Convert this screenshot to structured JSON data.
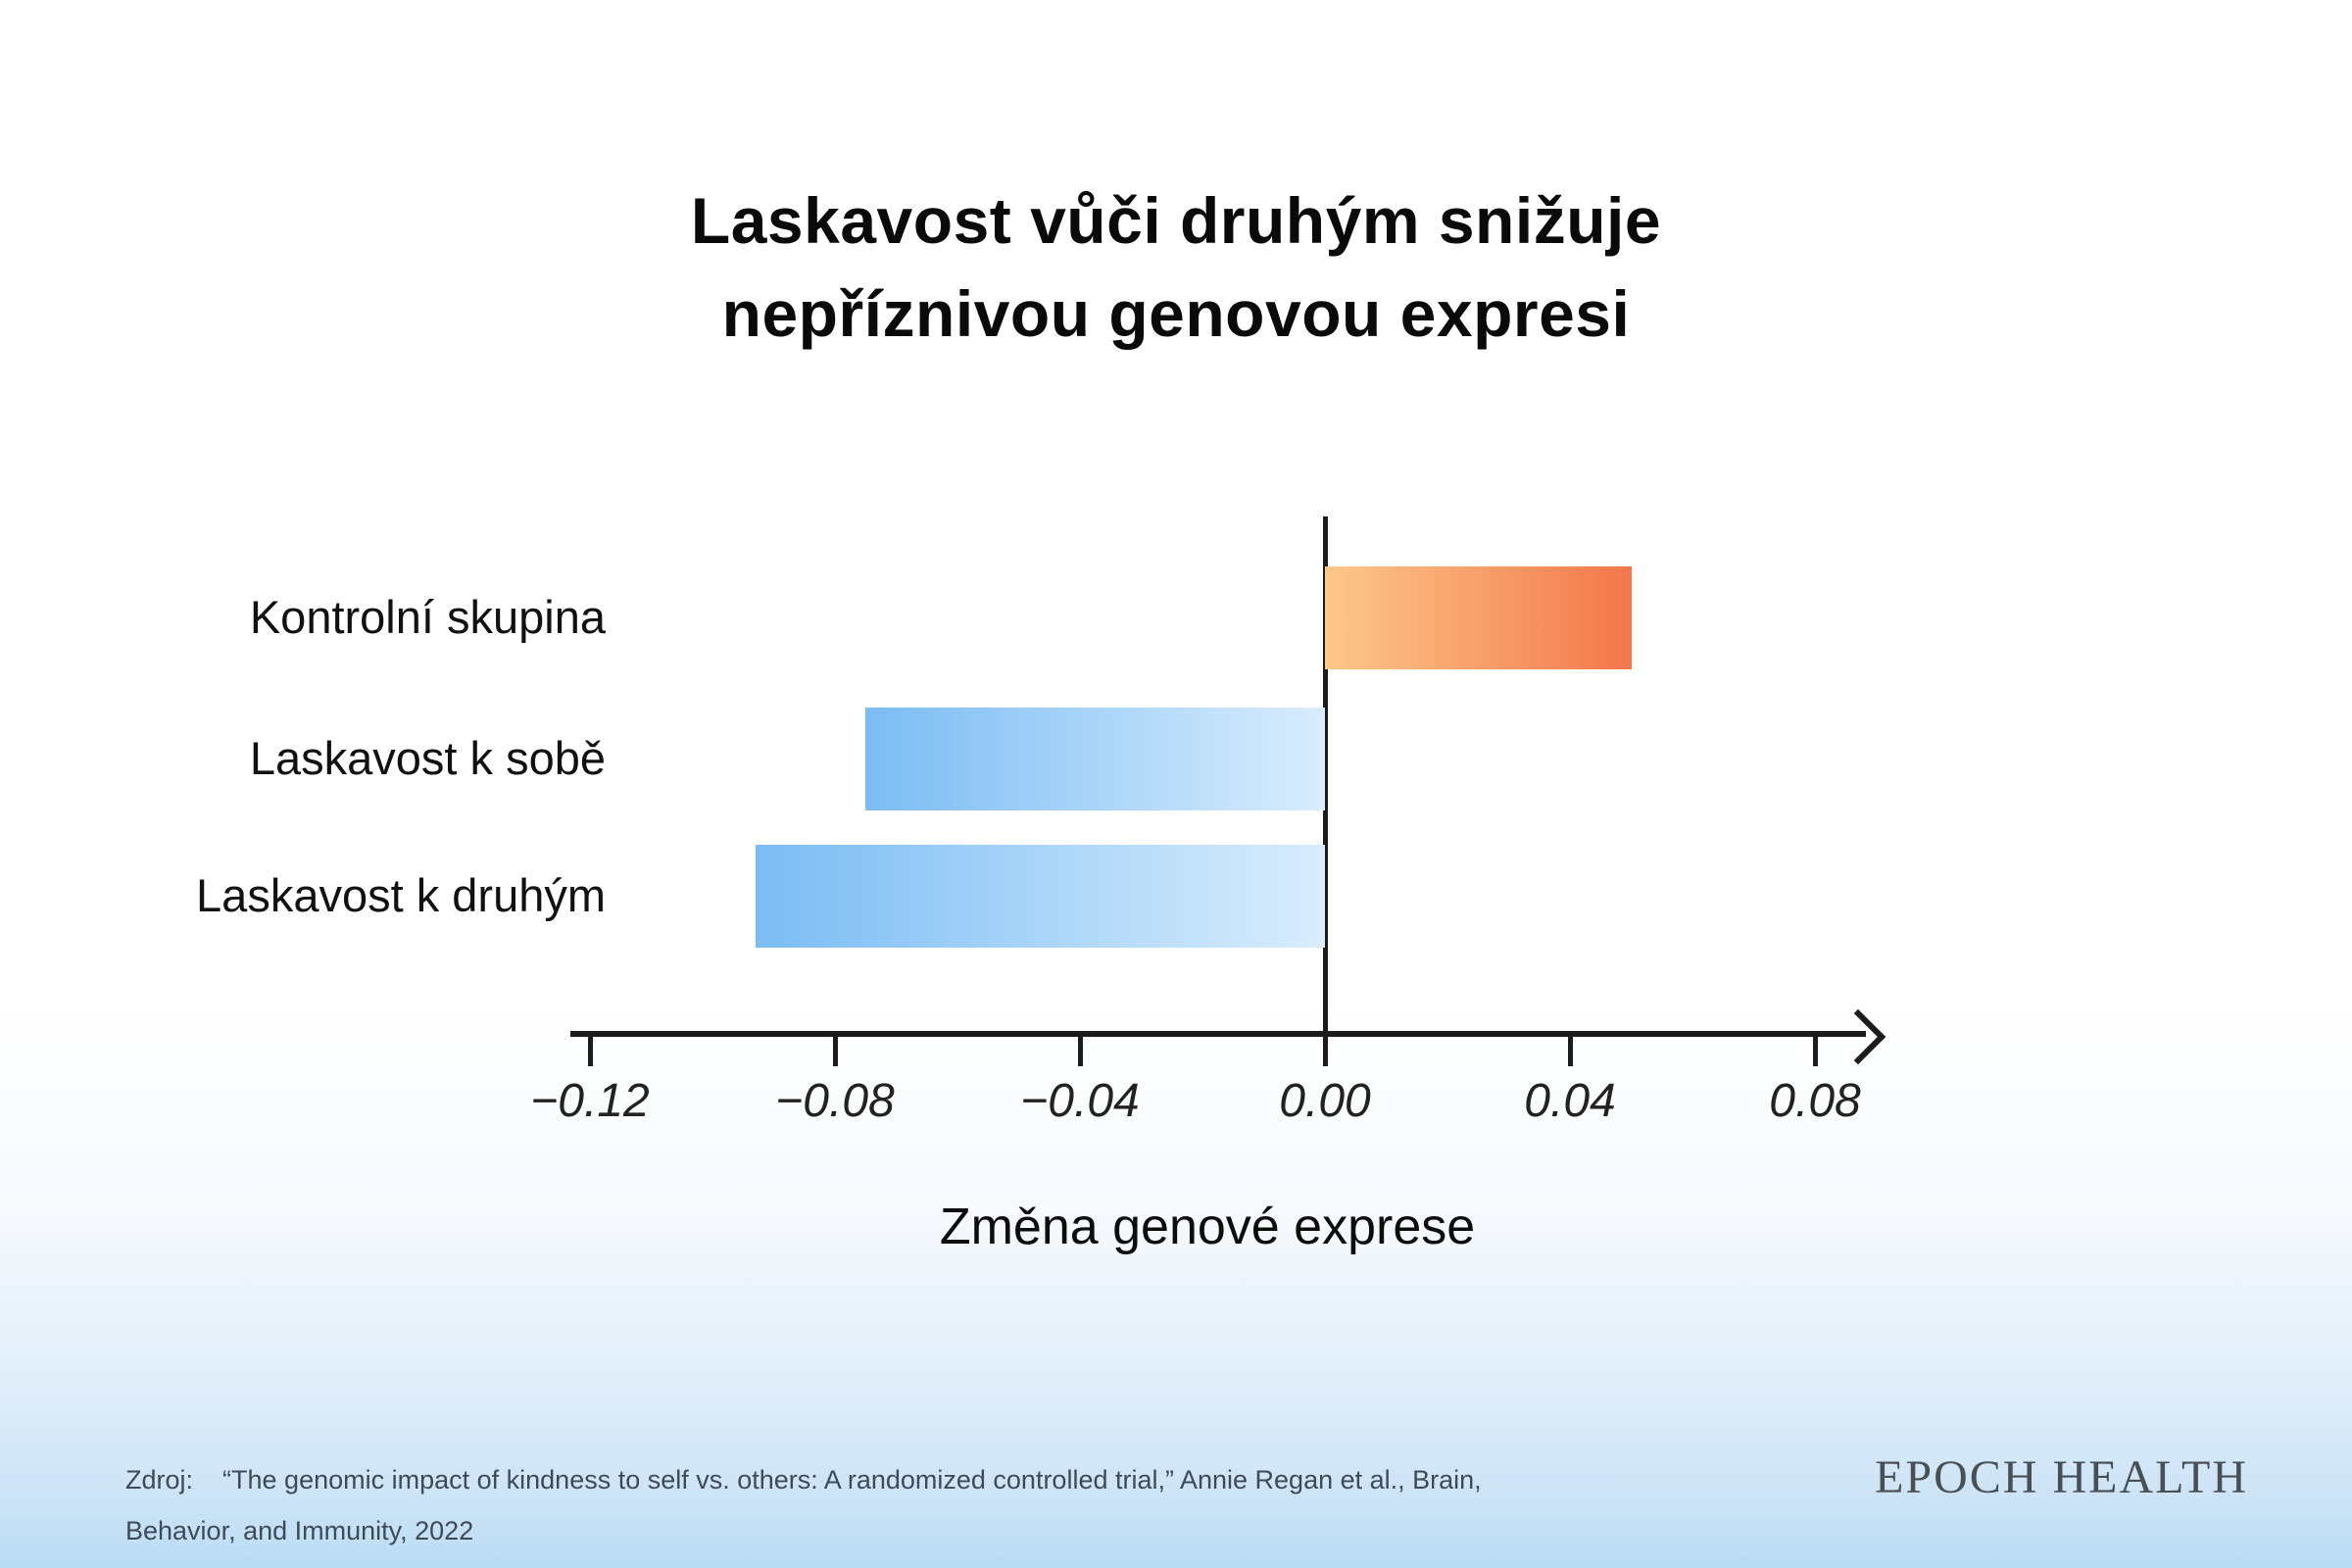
{
  "page": {
    "title_lines": [
      "Laskavost vůči druhým snižuje",
      "nepříznivou genovou expresi"
    ],
    "source": {
      "label": "Zdroj:",
      "line1": "“The genomic impact of kindness to self vs. others: A randomized controlled trial,” Annie Regan et al., Brain,",
      "line2": "Behavior, and Immunity, 2022"
    },
    "brand": "EPOCH HEALTH"
  },
  "chart_data": {
    "type": "bar",
    "orientation": "horizontal",
    "title": "Laskavost vůči druhým snižuje nepříznivou genovou expresi",
    "categories": [
      "Kontrolní skupina",
      "Laskavost k sobě",
      "Laskavost k druhým"
    ],
    "values": [
      0.05,
      -0.075,
      -0.093
    ],
    "xlabel": "Změna genové exprese",
    "xlim": [
      -0.14,
      0.09
    ],
    "x_ticks": [
      -0.12,
      -0.08,
      -0.04,
      0,
      0.04,
      0.08
    ],
    "x_tick_labels": [
      "−0.12",
      "−0.08",
      "−0.04",
      "0.00",
      "0.04",
      "0.08"
    ],
    "grid": false,
    "legend": false,
    "bar_colors": {
      "positive": [
        "#fcc88b",
        "#f3774a"
      ],
      "negative": [
        "#7bbcf3",
        "#d9edfd"
      ]
    },
    "axis_color": "#1c1c1c"
  },
  "colors": {
    "background_top": "#ffffff",
    "background_bottom": "#b9dcf4",
    "title_text": "#0a0a0a",
    "source_text": "#3e4b57",
    "brand_text": "#484f55"
  }
}
